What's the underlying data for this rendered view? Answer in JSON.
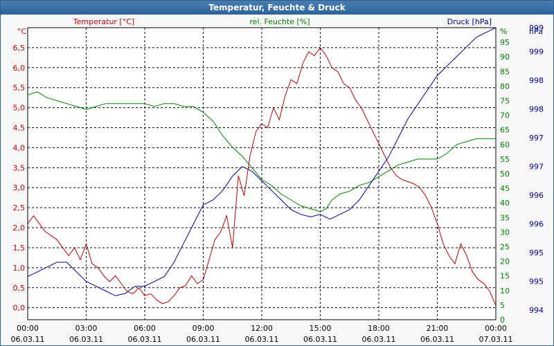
{
  "window": {
    "title": "Temperatur, Feuchte & Druck"
  },
  "colors": {
    "temperature": "#c00000",
    "humidity": "#008000",
    "pressure": "#000099",
    "grid": "#000000",
    "axis_text": "#000000"
  },
  "chart_data": {
    "type": "line",
    "title": "Temperatur, Feuchte & Druck",
    "grid": true,
    "x_ticks": [
      {
        "time": "00:00",
        "date": "06.03.11"
      },
      {
        "time": "03:00",
        "date": "06.03.11"
      },
      {
        "time": "06:00",
        "date": "06.03.11"
      },
      {
        "time": "09:00",
        "date": "06.03.11"
      },
      {
        "time": "12:00",
        "date": "06.03.11"
      },
      {
        "time": "15:00",
        "date": "06.03.11"
      },
      {
        "time": "18:00",
        "date": "06.03.11"
      },
      {
        "time": "21:00",
        "date": "06.03.11"
      },
      {
        "time": "00:00",
        "date": "07.03.11"
      }
    ],
    "xlim": [
      0,
      24
    ],
    "axes": {
      "temperature": {
        "label": "Temperatur [°C]",
        "unit": "°C",
        "ylim": [
          -0.3,
          7.0
        ],
        "ticks": [
          "0,0",
          "0,5",
          "1,0",
          "1,5",
          "2,0",
          "2,5",
          "3,0",
          "3,5",
          "4,0",
          "4,5",
          "5,0",
          "5,5",
          "6,0",
          "6,5"
        ],
        "tick_values": [
          0,
          0.5,
          1,
          1.5,
          2,
          2.5,
          3,
          3.5,
          4,
          4.5,
          5,
          5.5,
          6,
          6.5
        ]
      },
      "humidity": {
        "label": "rel. Feuchte [%]",
        "unit": "%",
        "ylim": [
          0,
          100
        ],
        "ticks": [
          "0",
          "5",
          "10",
          "15",
          "20",
          "25",
          "30",
          "35",
          "40",
          "45",
          "50",
          "55",
          "60",
          "65",
          "70",
          "75",
          "80",
          "85",
          "90",
          "95"
        ],
        "tick_values": [
          0,
          5,
          10,
          15,
          20,
          25,
          30,
          35,
          40,
          45,
          50,
          55,
          60,
          65,
          70,
          75,
          80,
          85,
          90,
          95
        ]
      },
      "pressure": {
        "label": "Druck [hPa]",
        "unit": "hPa",
        "ylim": [
          993.8,
          999.9
        ],
        "ticks": [
          "994",
          "995",
          "995",
          "996",
          "996",
          "997",
          "997",
          "998",
          "998",
          "999",
          "999"
        ],
        "tick_values": [
          994,
          994.6,
          995.2,
          995.8,
          996.4,
          997.0,
          997.6,
          998.2,
          998.8,
          999.4,
          999.9
        ]
      }
    },
    "series": [
      {
        "name": "Temperatur [°C]",
        "axis": "temperature",
        "points": [
          [
            0,
            2.1
          ],
          [
            0.3,
            2.3
          ],
          [
            0.6,
            2.1
          ],
          [
            0.9,
            1.9
          ],
          [
            1.2,
            1.8
          ],
          [
            1.5,
            1.7
          ],
          [
            1.8,
            1.5
          ],
          [
            2.1,
            1.3
          ],
          [
            2.4,
            1.5
          ],
          [
            2.7,
            1.2
          ],
          [
            3.0,
            1.6
          ],
          [
            3.3,
            1.1
          ],
          [
            3.6,
            1.0
          ],
          [
            3.9,
            0.8
          ],
          [
            4.2,
            0.65
          ],
          [
            4.5,
            0.8
          ],
          [
            4.8,
            0.6
          ],
          [
            5.1,
            0.4
          ],
          [
            5.4,
            0.35
          ],
          [
            5.7,
            0.5
          ],
          [
            6.0,
            0.3
          ],
          [
            6.3,
            0.35
          ],
          [
            6.6,
            0.2
          ],
          [
            6.9,
            0.1
          ],
          [
            7.2,
            0.15
          ],
          [
            7.5,
            0.3
          ],
          [
            7.8,
            0.5
          ],
          [
            8.1,
            0.55
          ],
          [
            8.4,
            0.8
          ],
          [
            8.7,
            0.6
          ],
          [
            9.0,
            0.7
          ],
          [
            9.3,
            1.2
          ],
          [
            9.6,
            1.7
          ],
          [
            9.9,
            1.9
          ],
          [
            10.2,
            2.3
          ],
          [
            10.5,
            1.5
          ],
          [
            10.8,
            3.3
          ],
          [
            11.1,
            2.8
          ],
          [
            11.4,
            3.8
          ],
          [
            11.7,
            4.4
          ],
          [
            12.0,
            4.6
          ],
          [
            12.3,
            4.5
          ],
          [
            12.6,
            5.0
          ],
          [
            12.9,
            4.7
          ],
          [
            13.2,
            5.3
          ],
          [
            13.5,
            5.7
          ],
          [
            13.8,
            5.6
          ],
          [
            14.1,
            6.1
          ],
          [
            14.4,
            6.4
          ],
          [
            14.7,
            6.3
          ],
          [
            15.0,
            6.5
          ],
          [
            15.3,
            6.3
          ],
          [
            15.6,
            6.0
          ],
          [
            15.9,
            5.9
          ],
          [
            16.2,
            5.6
          ],
          [
            16.5,
            5.5
          ],
          [
            16.8,
            5.2
          ],
          [
            17.1,
            5.0
          ],
          [
            17.4,
            4.7
          ],
          [
            17.7,
            4.4
          ],
          [
            18.0,
            4.1
          ],
          [
            18.3,
            3.8
          ],
          [
            18.6,
            3.5
          ],
          [
            18.9,
            3.3
          ],
          [
            19.2,
            3.2
          ],
          [
            19.5,
            3.15
          ],
          [
            19.8,
            3.1
          ],
          [
            20.1,
            3.0
          ],
          [
            20.4,
            2.8
          ],
          [
            20.7,
            2.5
          ],
          [
            21.0,
            2.1
          ],
          [
            21.3,
            1.6
          ],
          [
            21.6,
            1.3
          ],
          [
            21.9,
            1.1
          ],
          [
            22.2,
            1.6
          ],
          [
            22.5,
            1.3
          ],
          [
            22.8,
            0.9
          ],
          [
            23.1,
            0.7
          ],
          [
            23.4,
            0.6
          ],
          [
            23.7,
            0.4
          ],
          [
            24.0,
            0.05
          ]
        ]
      },
      {
        "name": "rel. Feuchte [%]",
        "axis": "humidity",
        "points": [
          [
            0,
            77
          ],
          [
            0.5,
            78
          ],
          [
            1.0,
            76
          ],
          [
            1.5,
            75
          ],
          [
            2.0,
            74
          ],
          [
            2.5,
            73
          ],
          [
            3.0,
            72
          ],
          [
            3.5,
            73
          ],
          [
            4.0,
            74
          ],
          [
            4.5,
            74
          ],
          [
            5.0,
            74
          ],
          [
            5.5,
            74
          ],
          [
            6.0,
            74
          ],
          [
            6.5,
            73
          ],
          [
            7.0,
            74
          ],
          [
            7.5,
            74
          ],
          [
            8.0,
            73
          ],
          [
            8.5,
            73
          ],
          [
            9.0,
            71
          ],
          [
            9.5,
            68
          ],
          [
            10.0,
            63
          ],
          [
            10.5,
            59
          ],
          [
            11.0,
            56
          ],
          [
            11.5,
            52
          ],
          [
            12.0,
            48
          ],
          [
            12.5,
            46
          ],
          [
            13.0,
            43
          ],
          [
            13.5,
            41
          ],
          [
            14.0,
            39
          ],
          [
            14.5,
            38
          ],
          [
            15.0,
            37
          ],
          [
            15.3,
            38
          ],
          [
            15.6,
            41
          ],
          [
            16.0,
            43
          ],
          [
            16.5,
            44
          ],
          [
            17.0,
            46
          ],
          [
            17.5,
            47
          ],
          [
            18.0,
            49
          ],
          [
            18.5,
            51
          ],
          [
            19.0,
            53
          ],
          [
            19.5,
            54
          ],
          [
            20.0,
            55
          ],
          [
            20.5,
            55
          ],
          [
            21.0,
            55
          ],
          [
            21.5,
            57
          ],
          [
            22.0,
            60
          ],
          [
            22.5,
            61
          ],
          [
            23.0,
            62
          ],
          [
            23.5,
            62
          ],
          [
            24.0,
            62
          ]
        ]
      },
      {
        "name": "Druck [hPa]",
        "axis": "pressure",
        "points": [
          [
            0,
            994.7
          ],
          [
            0.5,
            994.8
          ],
          [
            1.0,
            994.9
          ],
          [
            1.5,
            995.0
          ],
          [
            2.0,
            995.0
          ],
          [
            2.5,
            994.8
          ],
          [
            3.0,
            994.6
          ],
          [
            3.5,
            994.5
          ],
          [
            4.0,
            994.4
          ],
          [
            4.5,
            994.3
          ],
          [
            5.0,
            994.35
          ],
          [
            5.5,
            994.5
          ],
          [
            6.0,
            994.5
          ],
          [
            6.5,
            994.6
          ],
          [
            7.0,
            994.7
          ],
          [
            7.5,
            995.0
          ],
          [
            8.0,
            995.4
          ],
          [
            8.5,
            995.8
          ],
          [
            9.0,
            996.2
          ],
          [
            9.5,
            996.3
          ],
          [
            10.0,
            996.5
          ],
          [
            10.5,
            996.8
          ],
          [
            11.0,
            997.0
          ],
          [
            11.5,
            996.9
          ],
          [
            12.0,
            996.7
          ],
          [
            12.5,
            996.5
          ],
          [
            13.0,
            996.3
          ],
          [
            13.5,
            996.1
          ],
          [
            14.0,
            996.0
          ],
          [
            14.5,
            995.95
          ],
          [
            15.0,
            996.0
          ],
          [
            15.5,
            995.9
          ],
          [
            16.0,
            996.0
          ],
          [
            16.5,
            996.1
          ],
          [
            17.0,
            996.3
          ],
          [
            17.5,
            996.6
          ],
          [
            18.0,
            996.9
          ],
          [
            18.5,
            997.2
          ],
          [
            19.0,
            997.6
          ],
          [
            19.5,
            998.0
          ],
          [
            20.0,
            998.3
          ],
          [
            20.5,
            998.6
          ],
          [
            21.0,
            998.9
          ],
          [
            21.5,
            999.1
          ],
          [
            22.0,
            999.3
          ],
          [
            22.5,
            999.5
          ],
          [
            23.0,
            999.7
          ],
          [
            23.5,
            999.8
          ],
          [
            24.0,
            999.9
          ]
        ]
      }
    ]
  }
}
